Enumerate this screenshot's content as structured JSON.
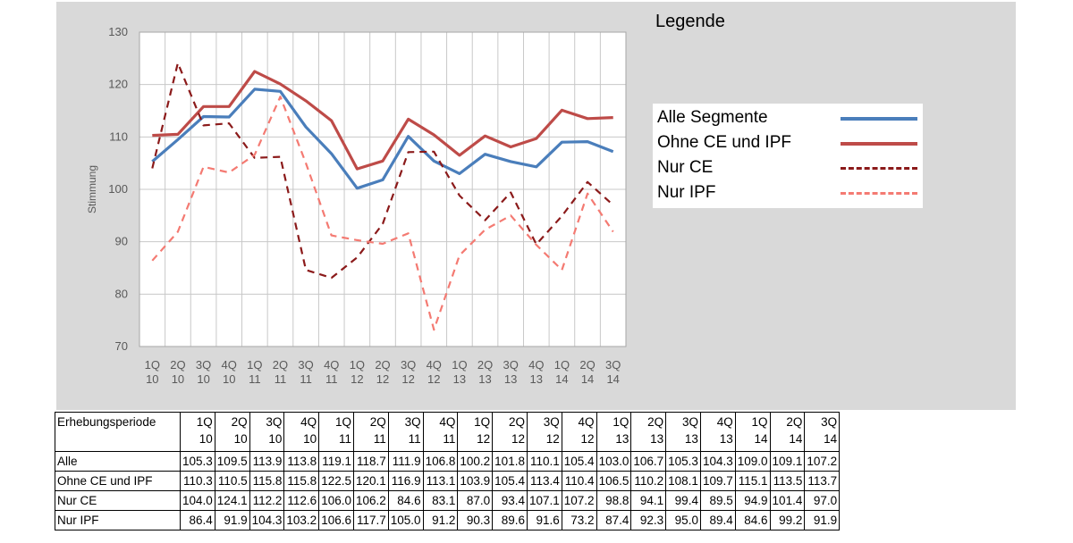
{
  "chart_data": {
    "type": "line",
    "categories": [
      "1Q 10",
      "2Q 10",
      "3Q 10",
      "4Q 10",
      "1Q 11",
      "2Q 11",
      "3Q 11",
      "4Q 11",
      "1Q 12",
      "2Q 12",
      "3Q 12",
      "4Q 12",
      "1Q 13",
      "2Q 13",
      "3Q 13",
      "4Q 13",
      "1Q 14",
      "2Q 14",
      "3Q 14"
    ],
    "category_lines": [
      [
        "1Q",
        "10"
      ],
      [
        "2Q",
        "10"
      ],
      [
        "3Q",
        "10"
      ],
      [
        "4Q",
        "10"
      ],
      [
        "1Q",
        "11"
      ],
      [
        "2Q",
        "11"
      ],
      [
        "3Q",
        "11"
      ],
      [
        "4Q",
        "11"
      ],
      [
        "1Q",
        "12"
      ],
      [
        "2Q",
        "12"
      ],
      [
        "3Q",
        "12"
      ],
      [
        "4Q",
        "12"
      ],
      [
        "1Q",
        "13"
      ],
      [
        "2Q",
        "13"
      ],
      [
        "3Q",
        "13"
      ],
      [
        "4Q",
        "13"
      ],
      [
        "1Q",
        "14"
      ],
      [
        "2Q",
        "14"
      ],
      [
        "3Q",
        "14"
      ]
    ],
    "ylabel": "Stimmung",
    "ylim": [
      70,
      130
    ],
    "yticks": [
      70,
      80,
      90,
      100,
      110,
      120,
      130
    ],
    "grid": true,
    "legend_title": "Legende",
    "legend_position": "right",
    "series": [
      {
        "name": "Alle Segmente",
        "color": "#4a7ebb",
        "style": "solid",
        "values": [
          105.3,
          109.5,
          113.9,
          113.8,
          119.1,
          118.7,
          111.9,
          106.8,
          100.2,
          101.8,
          110.1,
          105.4,
          103.0,
          106.7,
          105.3,
          104.3,
          109.0,
          109.1,
          107.2
        ]
      },
      {
        "name": "Ohne CE und IPF",
        "color": "#be4b48",
        "style": "solid",
        "values": [
          110.3,
          110.5,
          115.8,
          115.8,
          122.5,
          120.1,
          116.9,
          113.1,
          103.9,
          105.4,
          113.4,
          110.4,
          106.5,
          110.2,
          108.1,
          109.7,
          115.1,
          113.5,
          113.7
        ]
      },
      {
        "name": "Nur CE",
        "color": "#8b1a1a",
        "style": "dashed",
        "values": [
          104.0,
          124.1,
          112.2,
          112.6,
          106.0,
          106.2,
          84.6,
          83.1,
          87.0,
          93.4,
          107.1,
          107.2,
          98.8,
          94.1,
          99.4,
          89.5,
          94.9,
          101.4,
          97.0
        ]
      },
      {
        "name": "Nur IPF",
        "color": "#f47a72",
        "style": "dashed",
        "values": [
          86.4,
          91.9,
          104.3,
          103.2,
          106.6,
          117.7,
          105.0,
          91.2,
          90.3,
          89.6,
          91.6,
          73.2,
          87.4,
          92.3,
          95.0,
          89.4,
          84.6,
          99.2,
          91.9
        ]
      }
    ]
  },
  "table": {
    "header_label": "Erhebungsperiode",
    "rows": [
      {
        "label": "Alle",
        "cells": [
          "105.3",
          "109.5",
          "113.9",
          "113.8",
          "119.1",
          "118.7",
          "111.9",
          "106.8",
          "100.2",
          "101.8",
          "110.1",
          "105.4",
          "103.0",
          "106.7",
          "105.3",
          "104.3",
          "109.0",
          "109.1",
          "107.2"
        ]
      },
      {
        "label": "Ohne CE und IPF",
        "cells": [
          "110.3",
          "110.5",
          "115.8",
          "115.8",
          "122.5",
          "120.1",
          "116.9",
          "113.1",
          "103.9",
          "105.4",
          "113.4",
          "110.4",
          "106.5",
          "110.2",
          "108.1",
          "109.7",
          "115.1",
          "113.5",
          "113.7"
        ]
      },
      {
        "label": "Nur CE",
        "cells": [
          "104.0",
          "124.1",
          "112.2",
          "112.6",
          "106.0",
          "106.2",
          "84.6",
          "83.1",
          "87.0",
          "93.4",
          "107.1",
          "107.2",
          "98.8",
          "94.1",
          "99.4",
          "89.5",
          "94.9",
          "101.4",
          "97.0"
        ]
      },
      {
        "label": "Nur IPF",
        "cells": [
          "86.4",
          "91.9",
          "104.3",
          "103.2",
          "106.6",
          "117.7",
          "105.0",
          "91.2",
          "90.3",
          "89.6",
          "91.6",
          "73.2",
          "87.4",
          "92.3",
          "95.0",
          "89.4",
          "84.6",
          "99.2",
          "91.9"
        ]
      }
    ]
  }
}
